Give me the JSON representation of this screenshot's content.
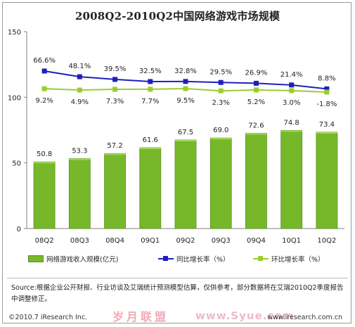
{
  "chart_data": {
    "type": "bar",
    "title": "2008Q2-2010Q2中国网络游戏市场规模",
    "categories": [
      "08Q2",
      "08Q3",
      "08Q4",
      "09Q1",
      "09Q2",
      "09Q3",
      "09Q4",
      "10Q1",
      "10Q2"
    ],
    "ylim": [
      0,
      150
    ],
    "yticks": [
      0,
      50,
      100,
      150
    ],
    "series": [
      {
        "name": "网络游戏收入规模(亿元)",
        "type": "bar",
        "color": "#77b82a",
        "values": [
          50.8,
          53.3,
          57.2,
          61.6,
          67.5,
          69.0,
          72.6,
          74.8,
          73.4
        ],
        "labels": [
          "50.8",
          "53.3",
          "57.2",
          "61.6",
          "67.5",
          "69.0",
          "72.6",
          "74.8",
          "73.4"
        ]
      },
      {
        "name": "同比增长率（%）",
        "type": "line",
        "color": "#1f1fbf",
        "values": [
          66.6,
          48.1,
          39.5,
          32.5,
          32.8,
          29.5,
          26.9,
          21.4,
          8.8
        ],
        "labels": [
          "66.6%",
          "48.1%",
          "39.5%",
          "32.5%",
          "32.8%",
          "29.5%",
          "26.9%",
          "21.4%",
          "8.8%"
        ]
      },
      {
        "name": "环比增长率（%）",
        "type": "line",
        "color": "#9acd32",
        "values": [
          9.2,
          4.9,
          7.3,
          7.7,
          9.5,
          2.3,
          5.2,
          3.0,
          -1.8
        ],
        "labels": [
          "9.2%",
          "4.9%",
          "7.3%",
          "7.7%",
          "9.5%",
          "2.3%",
          "5.2%",
          "3.0%",
          "-1.8%"
        ]
      }
    ],
    "grid": false,
    "legend": "bottom"
  },
  "source_text": "Source:根据企业公开财报、行业访谈及艾瑞统计预测模型估算，仅供参考，部分数据将在艾瑞2010Q2季度报告中调整修正。",
  "copyright": "©2010.7 iResearch Inc.",
  "url": "www.iresearch.com.cn",
  "watermark": "岁月联盟",
  "watermark_url": "www.Syue.com"
}
